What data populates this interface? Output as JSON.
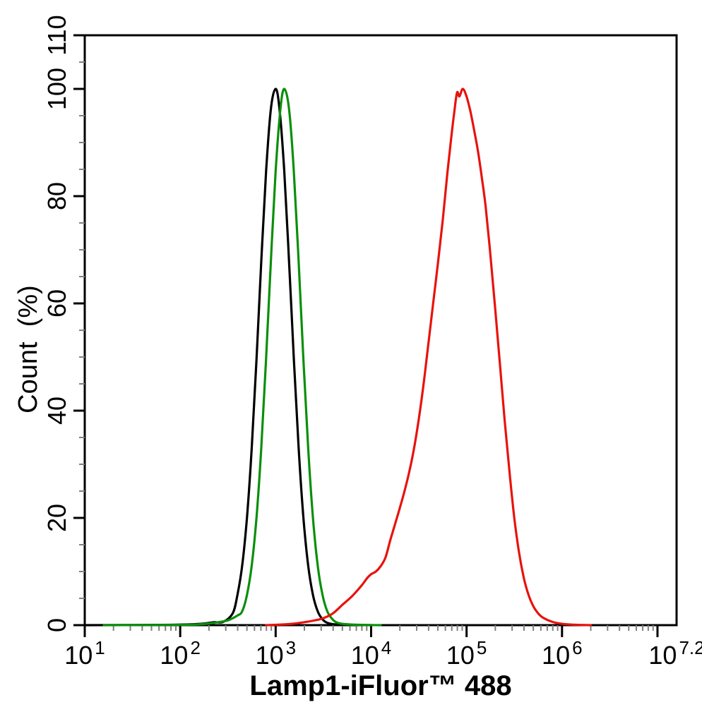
{
  "figure": {
    "background_color": "#ffffff",
    "frame_color": "#000000"
  },
  "chart_data": {
    "type": "line",
    "subtype": "flow-cytometry-histogram-overlay",
    "title": "",
    "xlabel": "Lamp1-iFluor™ 488",
    "ylabel": "Count  (%)",
    "grid": "off",
    "legend": "none",
    "x_axis": {
      "scale": "log10",
      "range_exp": [
        1,
        7.2
      ],
      "major_tick_exps": [
        1,
        2,
        3,
        4,
        5,
        6,
        7
      ],
      "minor_ticks": "log-decade minors at 2-9 within each decade",
      "tick_labels": [
        {
          "base": "10",
          "exp": "1",
          "pos_exp": 1
        },
        {
          "base": "10",
          "exp": "2",
          "pos_exp": 2
        },
        {
          "base": "10",
          "exp": "3",
          "pos_exp": 3
        },
        {
          "base": "10",
          "exp": "4",
          "pos_exp": 4
        },
        {
          "base": "10",
          "exp": "5",
          "pos_exp": 5
        },
        {
          "base": "10",
          "exp": "6",
          "pos_exp": 6
        },
        {
          "base": "10",
          "exp": "7.2",
          "pos_exp": 7.2
        }
      ],
      "major_tick_color": "#000000",
      "minor_tick_color": "#808080"
    },
    "y_axis": {
      "scale": "linear",
      "range": [
        0,
        110
      ],
      "major_ticks": [
        0,
        20,
        40,
        60,
        80,
        100,
        110
      ],
      "tick_labels": [
        "0",
        "20",
        "40",
        "60",
        "80",
        "100",
        "110"
      ],
      "minor_tick_step": 5,
      "tick_label_rotation_deg": -90,
      "major_tick_color": "#000000",
      "minor_tick_color": "#808080"
    },
    "series": [
      {
        "name": "black-curve",
        "color": "#000000",
        "peak_exp": 3.0,
        "peak_percent": 100,
        "points_exp_percent": [
          [
            1.0,
            0
          ],
          [
            1.8,
            0.05
          ],
          [
            2.1,
            0.15
          ],
          [
            2.25,
            0.3
          ],
          [
            2.35,
            0.55
          ],
          [
            2.45,
            0.6
          ],
          [
            2.55,
            2.2
          ],
          [
            2.6,
            5.7
          ],
          [
            2.65,
            11.2
          ],
          [
            2.7,
            20.2
          ],
          [
            2.75,
            33.2
          ],
          [
            2.8,
            49.8
          ],
          [
            2.85,
            68
          ],
          [
            2.9,
            84.7
          ],
          [
            2.95,
            96.3
          ],
          [
            3.0,
            100
          ],
          [
            3.04,
            96.3
          ],
          [
            3.09,
            84.7
          ],
          [
            3.14,
            68
          ],
          [
            3.19,
            49.8
          ],
          [
            3.24,
            33.2
          ],
          [
            3.29,
            20.2
          ],
          [
            3.34,
            11.2
          ],
          [
            3.39,
            5.7
          ],
          [
            3.44,
            2.6
          ],
          [
            3.49,
            1.1
          ],
          [
            3.54,
            0.45
          ],
          [
            3.62,
            0.15
          ],
          [
            3.8,
            0.05
          ],
          [
            4.0,
            0
          ]
        ]
      },
      {
        "name": "green-curve",
        "color": "#0a8f0a",
        "peak_exp": 3.09,
        "peak_percent": 100,
        "points_exp_percent": [
          [
            1.2,
            0
          ],
          [
            2.0,
            0.05
          ],
          [
            2.2,
            0.15
          ],
          [
            2.3,
            0.3
          ],
          [
            2.4,
            0.55
          ],
          [
            2.5,
            0.9
          ],
          [
            2.6,
            1.8
          ],
          [
            2.65,
            2.6
          ],
          [
            2.7,
            5.7
          ],
          [
            2.75,
            11.2
          ],
          [
            2.8,
            20.2
          ],
          [
            2.85,
            33.2
          ],
          [
            2.9,
            49.8
          ],
          [
            2.95,
            68
          ],
          [
            3.0,
            84.7
          ],
          [
            3.05,
            96.3
          ],
          [
            3.09,
            100
          ],
          [
            3.14,
            96.3
          ],
          [
            3.19,
            84.7
          ],
          [
            3.24,
            68
          ],
          [
            3.29,
            49.8
          ],
          [
            3.34,
            33.2
          ],
          [
            3.39,
            20.2
          ],
          [
            3.44,
            11.2
          ],
          [
            3.49,
            5.7
          ],
          [
            3.54,
            2.6
          ],
          [
            3.59,
            1.2
          ],
          [
            3.64,
            0.5
          ],
          [
            3.72,
            0.2
          ],
          [
            3.9,
            0.05
          ],
          [
            4.1,
            0
          ]
        ]
      },
      {
        "name": "red-curve",
        "color": "#e8120c",
        "peak_exp": 4.96,
        "peak_percent": 100,
        "points_exp_percent": [
          [
            2.9,
            0
          ],
          [
            3.1,
            0.15
          ],
          [
            3.2,
            0.3
          ],
          [
            3.3,
            0.55
          ],
          [
            3.4,
            0.85
          ],
          [
            3.5,
            1.3
          ],
          [
            3.6,
            2.2
          ],
          [
            3.7,
            3.8
          ],
          [
            3.8,
            5.4
          ],
          [
            3.9,
            7.4
          ],
          [
            3.96,
            8.8
          ],
          [
            4.0,
            9.5
          ],
          [
            4.05,
            10
          ],
          [
            4.1,
            11
          ],
          [
            4.15,
            12.6
          ],
          [
            4.2,
            15.8
          ],
          [
            4.25,
            18.8
          ],
          [
            4.3,
            21.8
          ],
          [
            4.35,
            25
          ],
          [
            4.4,
            28.6
          ],
          [
            4.45,
            33
          ],
          [
            4.5,
            38.5
          ],
          [
            4.55,
            45
          ],
          [
            4.6,
            52.5
          ],
          [
            4.65,
            60
          ],
          [
            4.7,
            67.5
          ],
          [
            4.75,
            75.5
          ],
          [
            4.8,
            84.5
          ],
          [
            4.84,
            91
          ],
          [
            4.87,
            95.5
          ],
          [
            4.9,
            99.3
          ],
          [
            4.925,
            98.6
          ],
          [
            4.96,
            100
          ],
          [
            5.0,
            98.6
          ],
          [
            5.04,
            95.8
          ],
          [
            5.08,
            92.2
          ],
          [
            5.12,
            88.3
          ],
          [
            5.16,
            83.4
          ],
          [
            5.2,
            78
          ],
          [
            5.25,
            69
          ],
          [
            5.3,
            59
          ],
          [
            5.35,
            48.5
          ],
          [
            5.4,
            38
          ],
          [
            5.45,
            28.5
          ],
          [
            5.5,
            20
          ],
          [
            5.55,
            13.5
          ],
          [
            5.6,
            8.8
          ],
          [
            5.65,
            5.6
          ],
          [
            5.7,
            3.5
          ],
          [
            5.75,
            2.2
          ],
          [
            5.8,
            1.4
          ],
          [
            5.9,
            0.6
          ],
          [
            6.0,
            0.25
          ],
          [
            6.1,
            0.1
          ],
          [
            6.3,
            0
          ]
        ]
      }
    ]
  }
}
